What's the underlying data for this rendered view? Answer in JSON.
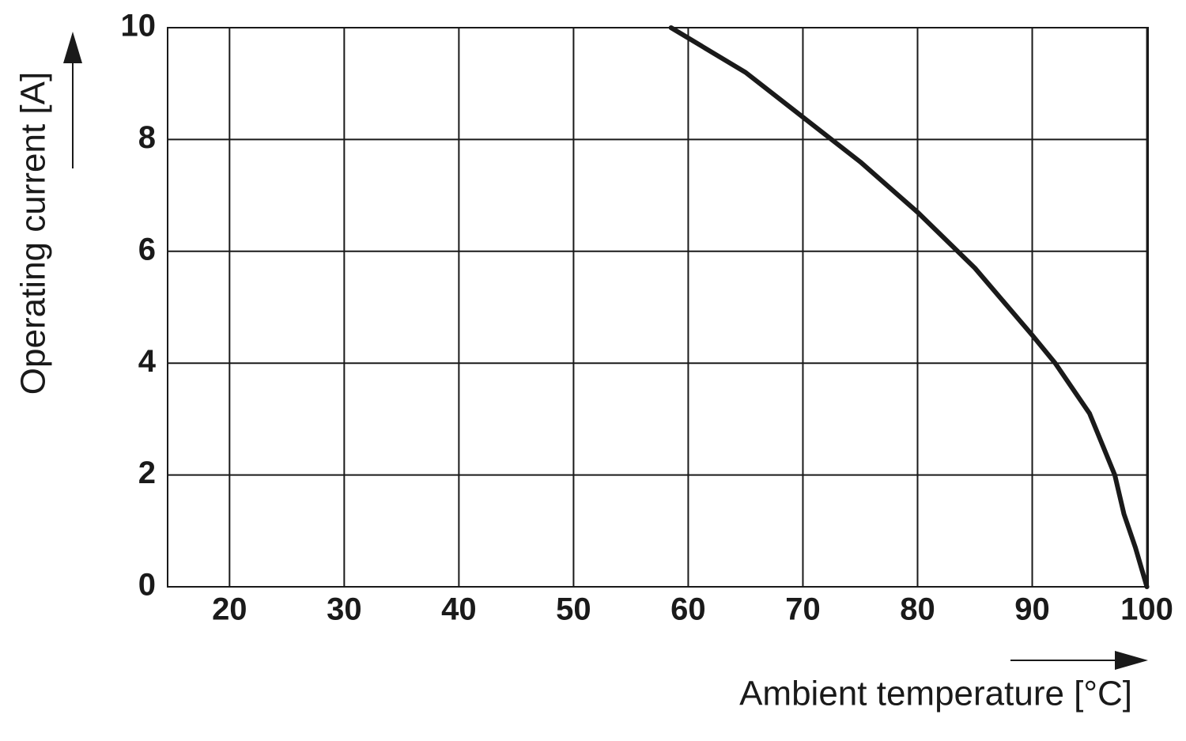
{
  "chart_data": {
    "type": "line",
    "x_label": "Ambient temperature [°C]",
    "y_label": "Operating current [A]",
    "x": [
      58.5,
      65,
      70,
      75,
      80,
      85,
      90,
      92,
      95,
      97.2,
      98,
      99,
      100
    ],
    "values": [
      10,
      9.2,
      8.4,
      7.6,
      6.7,
      5.7,
      4.5,
      4,
      3.1,
      2,
      1.3,
      0.7,
      0
    ],
    "color": "#1a1a1a",
    "xlim": [
      14.6,
      100.1
    ],
    "xticks": [
      20,
      30,
      40,
      50,
      60,
      70,
      80,
      90,
      100
    ],
    "ylim": [
      0,
      10
    ],
    "yticks": [
      0,
      2,
      4,
      6,
      8,
      10
    ],
    "grid": true
  }
}
